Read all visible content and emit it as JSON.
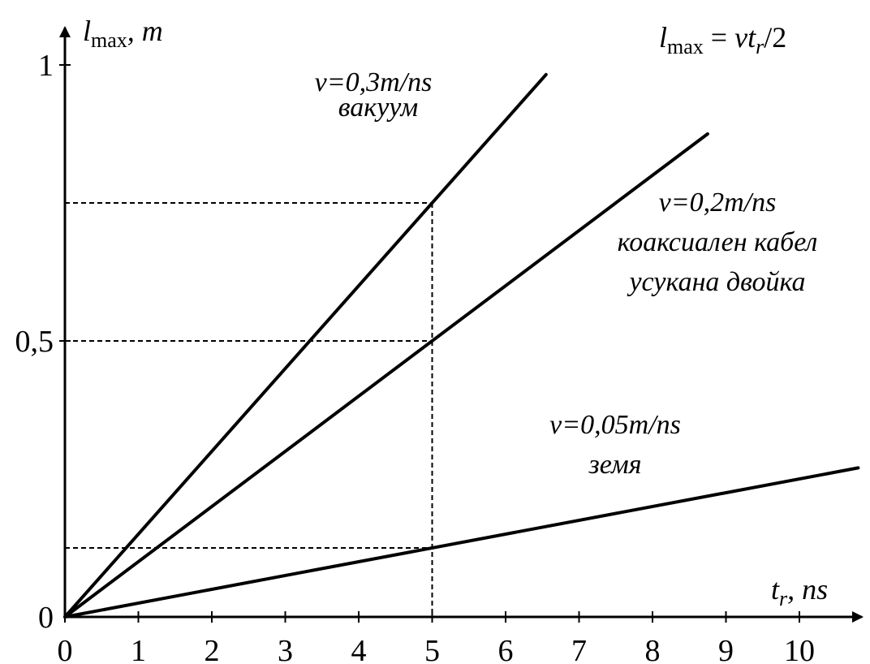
{
  "chart_data": {
    "type": "line",
    "formula": {
      "lhs_main": "l",
      "lhs_sub": "max",
      "rhs_a": " = ",
      "rhs_b": "vt",
      "rhs_sub": "r",
      "rhs_c": "/2"
    },
    "y_axis_label": {
      "main": "l",
      "sub": "max",
      "unit": ", m"
    },
    "x_axis_label": {
      "main": "t",
      "sub": "r",
      "unit": ", ns"
    },
    "xlim": [
      0,
      10.8
    ],
    "ylim": [
      0,
      1.0
    ],
    "x_ticks": [
      "0",
      "1",
      "2",
      "3",
      "4",
      "5",
      "6",
      "7",
      "8",
      "9",
      "10"
    ],
    "y_ticks": [
      {
        "value": 0,
        "label": "0"
      },
      {
        "value": 0.5,
        "label": "0,5"
      },
      {
        "value": 1,
        "label": "1"
      }
    ],
    "series": [
      {
        "x_end": 6.55,
        "slope": 0.15,
        "label_lines": [
          "v=0,3m/ns",
          "вакуум"
        ]
      },
      {
        "x_end": 8.75,
        "slope": 0.1,
        "label_lines": [
          "v=0,2m/ns",
          "коаксиален кабел",
          "усукана двойка"
        ]
      },
      {
        "x_end": 10.8,
        "slope": 0.025,
        "label_lines": [
          "v=0,05m/ns",
          "земя"
        ]
      }
    ],
    "reference_lines": {
      "x": 5,
      "y_values": [
        0.75,
        0.5,
        0.125
      ]
    }
  }
}
